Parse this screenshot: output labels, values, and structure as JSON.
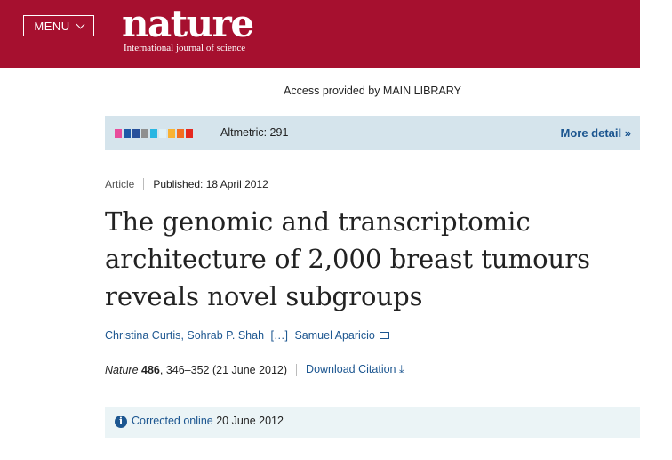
{
  "header": {
    "menu_label": "MENU",
    "logo_word": "nature",
    "logo_tagline": "International journal of science"
  },
  "access_text": "Access provided by MAIN LIBRARY",
  "altmetric": {
    "score_label": "Altmetric: 291",
    "more_detail": "More detail",
    "colors": [
      "#e84c9b",
      "#1e5aa8",
      "#27509b",
      "#8f8f8f",
      "#28b6e2",
      "#e0f0f5",
      "#f9b233",
      "#f36e21",
      "#e5281f"
    ]
  },
  "article": {
    "type": "Article",
    "published": "Published: 18 April 2012",
    "title": "The genomic and transcriptomic architecture of 2,000 breast tumours reveals novel subgroups",
    "authors": [
      "Christina Curtis",
      "Sohrab P. Shah",
      "[…]",
      "Samuel Aparicio"
    ],
    "journal": "Nature",
    "volume": "486",
    "pages_date": ", 346–352 (21 June 2012)",
    "download_citation": "Download Citation"
  },
  "correction": {
    "link_text": "Corrected online",
    "date": "20 June 2012"
  }
}
